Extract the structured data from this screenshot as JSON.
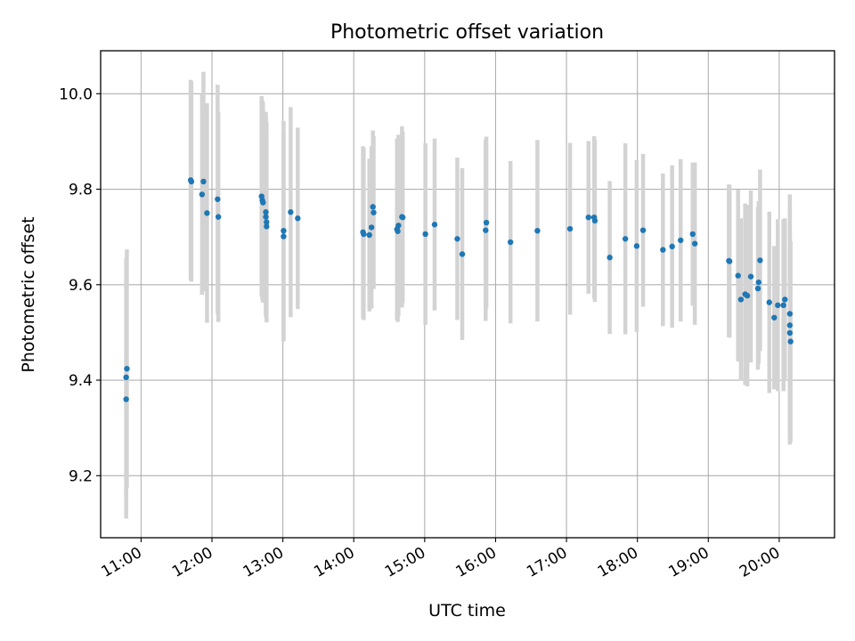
{
  "chart_data": {
    "type": "scatter",
    "title": "Photometric offset variation",
    "xlabel": "UTC time",
    "ylabel": "Photometric offset",
    "x_unit": "UTC hour",
    "xlim": [
      10.43,
      20.78
    ],
    "ylim": [
      9.07,
      10.09
    ],
    "x_ticks": [
      {
        "value": 11,
        "label": "11:00"
      },
      {
        "value": 12,
        "label": "12:00"
      },
      {
        "value": 13,
        "label": "13:00"
      },
      {
        "value": 14,
        "label": "14:00"
      },
      {
        "value": 15,
        "label": "15:00"
      },
      {
        "value": 16,
        "label": "16:00"
      },
      {
        "value": 17,
        "label": "17:00"
      },
      {
        "value": 18,
        "label": "18:00"
      },
      {
        "value": 19,
        "label": "19:00"
      },
      {
        "value": 20,
        "label": "20:00"
      }
    ],
    "y_ticks": [
      {
        "value": 9.2,
        "label": "9.2"
      },
      {
        "value": 9.4,
        "label": "9.4"
      },
      {
        "value": 9.6,
        "label": "9.6"
      },
      {
        "value": 9.8,
        "label": "9.8"
      },
      {
        "value": 10.0,
        "label": "10.0"
      }
    ],
    "grid": true,
    "colors": {
      "point": "#1f77b4",
      "errorbar": "#d3d3d3",
      "grid": "#b0b0b0"
    },
    "points": [
      {
        "x": 10.79,
        "y": 9.36,
        "err": 0.25
      },
      {
        "x": 10.79,
        "y": 9.406,
        "err": 0.25
      },
      {
        "x": 10.8,
        "y": 9.424,
        "err": 0.25
      },
      {
        "x": 11.7,
        "y": 9.819,
        "err": 0.21
      },
      {
        "x": 11.71,
        "y": 9.816,
        "err": 0.21
      },
      {
        "x": 11.86,
        "y": 9.789,
        "err": 0.21
      },
      {
        "x": 11.88,
        "y": 9.816,
        "err": 0.23
      },
      {
        "x": 11.93,
        "y": 9.75,
        "err": 0.23
      },
      {
        "x": 12.08,
        "y": 9.779,
        "err": 0.24
      },
      {
        "x": 12.09,
        "y": 9.742,
        "err": 0.22
      },
      {
        "x": 12.7,
        "y": 9.785,
        "err": 0.21
      },
      {
        "x": 12.71,
        "y": 9.777,
        "err": 0.21
      },
      {
        "x": 12.72,
        "y": 9.772,
        "err": 0.21
      },
      {
        "x": 12.76,
        "y": 9.752,
        "err": 0.21
      },
      {
        "x": 12.76,
        "y": 9.742,
        "err": 0.21
      },
      {
        "x": 12.77,
        "y": 9.731,
        "err": 0.21
      },
      {
        "x": 12.77,
        "y": 9.722,
        "err": 0.2
      },
      {
        "x": 13.01,
        "y": 9.713,
        "err": 0.23
      },
      {
        "x": 13.01,
        "y": 9.701,
        "err": 0.22
      },
      {
        "x": 13.11,
        "y": 9.752,
        "err": 0.22
      },
      {
        "x": 13.21,
        "y": 9.739,
        "err": 0.19
      },
      {
        "x": 14.13,
        "y": 9.71,
        "err": 0.18
      },
      {
        "x": 14.14,
        "y": 9.706,
        "err": 0.18
      },
      {
        "x": 14.22,
        "y": 9.704,
        "err": 0.16
      },
      {
        "x": 14.25,
        "y": 9.72,
        "err": 0.17
      },
      {
        "x": 14.27,
        "y": 9.763,
        "err": 0.16
      },
      {
        "x": 14.28,
        "y": 9.751,
        "err": 0.16
      },
      {
        "x": 14.61,
        "y": 9.716,
        "err": 0.19
      },
      {
        "x": 14.62,
        "y": 9.712,
        "err": 0.19
      },
      {
        "x": 14.63,
        "y": 9.724,
        "err": 0.19
      },
      {
        "x": 14.68,
        "y": 9.742,
        "err": 0.19
      },
      {
        "x": 14.69,
        "y": 9.741,
        "err": 0.18
      },
      {
        "x": 15.01,
        "y": 9.706,
        "err": 0.19
      },
      {
        "x": 15.14,
        "y": 9.726,
        "err": 0.18
      },
      {
        "x": 15.46,
        "y": 9.696,
        "err": 0.17
      },
      {
        "x": 15.53,
        "y": 9.664,
        "err": 0.18
      },
      {
        "x": 15.86,
        "y": 9.714,
        "err": 0.19
      },
      {
        "x": 15.87,
        "y": 9.73,
        "err": 0.18
      },
      {
        "x": 16.21,
        "y": 9.689,
        "err": 0.17
      },
      {
        "x": 16.59,
        "y": 9.713,
        "err": 0.19
      },
      {
        "x": 17.05,
        "y": 9.717,
        "err": 0.18
      },
      {
        "x": 17.31,
        "y": 9.741,
        "err": 0.16
      },
      {
        "x": 17.39,
        "y": 9.741,
        "err": 0.17
      },
      {
        "x": 17.4,
        "y": 9.734,
        "err": 0.17
      },
      {
        "x": 17.61,
        "y": 9.657,
        "err": 0.16
      },
      {
        "x": 17.83,
        "y": 9.696,
        "err": 0.2
      },
      {
        "x": 17.99,
        "y": 9.681,
        "err": 0.18
      },
      {
        "x": 18.08,
        "y": 9.714,
        "err": 0.16
      },
      {
        "x": 18.36,
        "y": 9.673,
        "err": 0.16
      },
      {
        "x": 18.49,
        "y": 9.68,
        "err": 0.17
      },
      {
        "x": 18.61,
        "y": 9.693,
        "err": 0.17
      },
      {
        "x": 18.78,
        "y": 9.706,
        "err": 0.15
      },
      {
        "x": 18.81,
        "y": 9.686,
        "err": 0.17
      },
      {
        "x": 19.29,
        "y": 9.65,
        "err": 0.16
      },
      {
        "x": 19.3,
        "y": 9.649,
        "err": 0.16
      },
      {
        "x": 19.42,
        "y": 9.619,
        "err": 0.18
      },
      {
        "x": 19.46,
        "y": 9.569,
        "err": 0.17
      },
      {
        "x": 19.52,
        "y": 9.58,
        "err": 0.19
      },
      {
        "x": 19.55,
        "y": 9.577,
        "err": 0.19
      },
      {
        "x": 19.6,
        "y": 9.617,
        "err": 0.18
      },
      {
        "x": 19.7,
        "y": 9.592,
        "err": 0.17
      },
      {
        "x": 19.71,
        "y": 9.605,
        "err": 0.17
      },
      {
        "x": 19.73,
        "y": 9.651,
        "err": 0.19
      },
      {
        "x": 19.86,
        "y": 9.563,
        "err": 0.19
      },
      {
        "x": 19.93,
        "y": 9.531,
        "err": 0.15
      },
      {
        "x": 19.98,
        "y": 9.557,
        "err": 0.18
      },
      {
        "x": 20.06,
        "y": 9.557,
        "err": 0.18
      },
      {
        "x": 20.08,
        "y": 9.569,
        "err": 0.17
      },
      {
        "x": 20.15,
        "y": 9.539,
        "err": 0.25
      },
      {
        "x": 20.15,
        "y": 9.515,
        "err": 0.25
      },
      {
        "x": 20.15,
        "y": 9.499,
        "err": 0.21
      },
      {
        "x": 20.16,
        "y": 9.481,
        "err": 0.21
      }
    ]
  }
}
